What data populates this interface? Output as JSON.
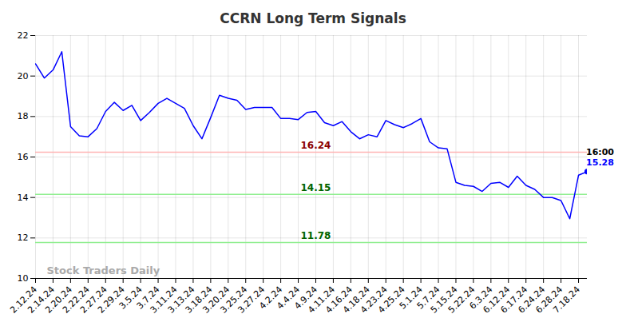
{
  "chart_data": {
    "type": "line",
    "title": "CCRN Long Term Signals",
    "categories": [
      "2.12.24",
      null,
      "2.14.24",
      null,
      "2.20.24",
      null,
      "2.22.24",
      null,
      "2.27.24",
      null,
      "2.29.24",
      null,
      "3.5.24",
      null,
      "3.7.24",
      null,
      "3.11.24",
      null,
      "3.13.24",
      null,
      "3.18.24",
      null,
      "3.20.24",
      null,
      "3.25.24",
      null,
      "3.27.24",
      null,
      "4.2.24",
      null,
      "4.4.24",
      null,
      "4.9.24",
      null,
      "4.11.24",
      null,
      "4.16.24",
      null,
      "4.18.24",
      null,
      "4.23.24",
      null,
      "4.25.24",
      null,
      "5.1.24",
      null,
      "5.7.24",
      null,
      "5.15.24",
      null,
      "5.22.24",
      null,
      "6.3.24",
      null,
      "6.12.24",
      null,
      "6.17.24",
      null,
      "6.24.24",
      null,
      "6.28.24",
      null,
      "7.18.24",
      null
    ],
    "values": [
      20.6,
      19.9,
      20.3,
      21.2,
      17.5,
      17.05,
      17.0,
      17.4,
      18.25,
      18.7,
      18.3,
      18.55,
      17.8,
      18.2,
      18.65,
      18.9,
      18.65,
      18.4,
      17.55,
      16.9,
      17.95,
      19.05,
      18.9,
      18.8,
      18.35,
      18.45,
      18.45,
      18.45,
      17.9,
      17.9,
      17.85,
      18.2,
      18.25,
      17.7,
      17.55,
      17.75,
      17.25,
      16.9,
      17.1,
      17.0,
      17.8,
      17.6,
      17.45,
      17.65,
      17.9,
      16.75,
      16.45,
      16.4,
      14.75,
      14.6,
      14.55,
      14.3,
      14.7,
      14.75,
      14.5,
      15.05,
      14.6,
      14.4,
      14.0,
      14.0,
      13.85,
      12.95,
      15.1,
      15.28
    ],
    "color": "#0000ff",
    "ylim": [
      10,
      22
    ],
    "yticks": [
      10,
      12,
      14,
      16,
      18,
      20,
      22
    ],
    "grid": true,
    "levels": [
      {
        "value": 16.24,
        "label": "16.24",
        "color": "#ffb3b3",
        "label_color": "#8b0000"
      },
      {
        "value": 14.15,
        "label": "14.15",
        "color": "#90ee90",
        "label_color": "#006400"
      },
      {
        "value": 11.78,
        "label": "11.78",
        "color": "#90ee90",
        "label_color": "#006400"
      }
    ],
    "end_label": "16:00",
    "watermark": "Stock Traders Daily"
  }
}
